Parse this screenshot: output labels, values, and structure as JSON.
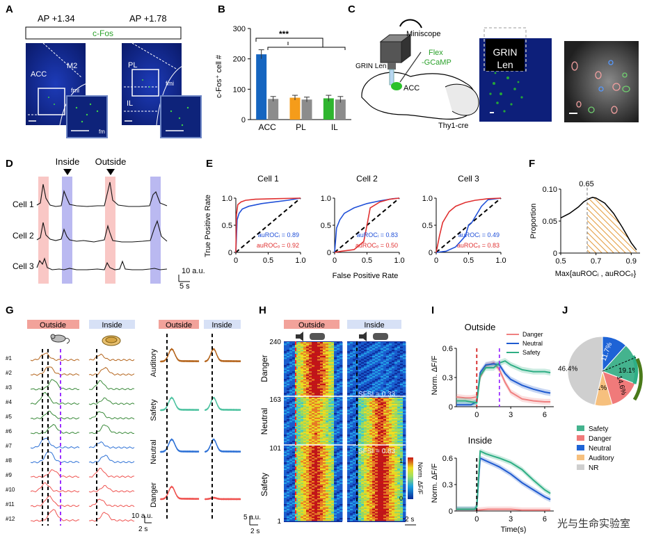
{
  "figure": {
    "panel_letters": [
      "A",
      "B",
      "C",
      "D",
      "E",
      "F",
      "G",
      "H",
      "I",
      "J"
    ],
    "watermark": "光与生命实验室"
  },
  "panelA": {
    "ap_labels": [
      "AP +1.34",
      "AP +1.78"
    ],
    "stain_label": "c-Fos",
    "region_labels": [
      "ACC",
      "M2",
      "fmi",
      "fm",
      "PL",
      "IL",
      "fmi"
    ]
  },
  "panelB": {
    "ylabel": "c-Fos⁺ cell #",
    "significance": "***",
    "chart_data": {
      "type": "bar",
      "categories": [
        "ACC",
        "PL",
        "IL"
      ],
      "ylim": [
        0,
        300
      ],
      "yticks": [
        0,
        100,
        200,
        300
      ],
      "series": [
        {
          "values": [
            215,
            72,
            70
          ],
          "errors": [
            15,
            8,
            10
          ],
          "colors": [
            "#1565c0",
            "#f59c1a",
            "#2fb52f"
          ]
        },
        {
          "values": [
            68,
            66,
            66
          ],
          "errors": [
            8,
            8,
            10
          ],
          "colors": [
            "#8c8c8c",
            "#8c8c8c",
            "#8c8c8c"
          ]
        }
      ]
    }
  },
  "panelC": {
    "labels": [
      "Miniscope",
      "GRIN Len",
      "Flex",
      "-GCaMP",
      "ACC",
      "Thy1-cre",
      "GRIN",
      "Len"
    ]
  },
  "panelD": {
    "markers": [
      "Inside",
      "Outside"
    ],
    "cells": [
      "Cell 1",
      "Cell 2",
      "Cell 3"
    ],
    "scale_y": "10 a.u.",
    "scale_x": "5 s"
  },
  "panelE": {
    "ylabel": "True Positive Rate",
    "xlabel": "False Positive Rate",
    "chart_data": [
      {
        "type": "line",
        "title": "Cell 1",
        "xlim": [
          0,
          1
        ],
        "ylim": [
          0,
          1
        ],
        "xticks": [
          "0",
          "0.5",
          "1.0"
        ],
        "yticks": [
          "0",
          "0.5",
          "1.0"
        ],
        "annotations": [
          "auROCᵢ = 0.89",
          "auROCₒ = 0.92"
        ],
        "series": [
          {
            "color": "#1f4fd8",
            "x": [
              0,
              0.02,
              0.05,
              0.1,
              0.2,
              0.4,
              0.6,
              0.8,
              1
            ],
            "y": [
              0,
              0.6,
              0.72,
              0.8,
              0.85,
              0.9,
              0.93,
              0.96,
              1
            ]
          },
          {
            "color": "#e03030",
            "x": [
              0,
              0.01,
              0.03,
              0.08,
              0.15,
              0.3,
              0.6,
              1
            ],
            "y": [
              0,
              0.7,
              0.88,
              0.93,
              0.96,
              0.98,
              0.99,
              1
            ]
          }
        ]
      },
      {
        "type": "line",
        "title": "Cell 2",
        "xlim": [
          0,
          1
        ],
        "ylim": [
          0,
          1
        ],
        "xticks": [
          "0",
          "0.5",
          "1.0"
        ],
        "yticks": [
          "0",
          "0.5",
          "1.0"
        ],
        "annotations": [
          "auROCᵢ = 0.83",
          "auROCₒ = 0.50"
        ],
        "series": [
          {
            "color": "#1f4fd8",
            "x": [
              0,
              0.03,
              0.08,
              0.15,
              0.3,
              0.5,
              0.7,
              0.9,
              1
            ],
            "y": [
              0,
              0.45,
              0.6,
              0.72,
              0.82,
              0.9,
              0.95,
              0.99,
              1
            ]
          },
          {
            "color": "#e03030",
            "x": [
              0,
              0.1,
              0.3,
              0.45,
              0.5,
              0.55,
              0.7,
              0.85,
              1
            ],
            "y": [
              0,
              0.02,
              0.05,
              0.2,
              0.5,
              0.82,
              0.93,
              0.98,
              1
            ]
          }
        ]
      },
      {
        "type": "line",
        "title": "Cell 3",
        "xlim": [
          0,
          1
        ],
        "ylim": [
          0,
          1
        ],
        "xticks": [
          "0",
          "0.5",
          "1.0"
        ],
        "yticks": [
          "0",
          "0.5",
          "1.0"
        ],
        "annotations": [
          "auROCᵢ = 0.49",
          "auROCₒ = 0.83"
        ],
        "series": [
          {
            "color": "#1f4fd8",
            "x": [
              0,
              0.15,
              0.3,
              0.45,
              0.5,
              0.55,
              0.7,
              0.8,
              1
            ],
            "y": [
              0,
              0.02,
              0.1,
              0.3,
              0.5,
              0.55,
              0.85,
              0.97,
              1
            ]
          },
          {
            "color": "#e03030",
            "x": [
              0,
              0.05,
              0.1,
              0.2,
              0.3,
              0.45,
              0.6,
              0.8,
              1
            ],
            "y": [
              0,
              0.3,
              0.55,
              0.75,
              0.85,
              0.92,
              0.96,
              0.99,
              1
            ]
          }
        ]
      }
    ]
  },
  "panelF": {
    "ylabel": "Proportion",
    "xlabel": "Max{auROCᵢ , auROCₒ}",
    "threshold_label": "0.65",
    "chart_data": {
      "type": "area",
      "xlim": [
        0.5,
        0.95
      ],
      "ylim": [
        0,
        0.1
      ],
      "xticks": [
        "0.5",
        "0.7",
        "0.9"
      ],
      "yticks": [
        "0",
        "0.05",
        "0.10"
      ],
      "threshold": 0.65,
      "x": [
        0.5,
        0.55,
        0.6,
        0.63,
        0.66,
        0.68,
        0.7,
        0.75,
        0.8,
        0.85,
        0.9,
        0.93
      ],
      "y": [
        0.055,
        0.062,
        0.072,
        0.08,
        0.085,
        0.087,
        0.086,
        0.078,
        0.062,
        0.04,
        0.016,
        0.005
      ]
    }
  },
  "panelG": {
    "headers": [
      "Outside",
      "Inside",
      "Outside",
      "Inside"
    ],
    "row_labels": [
      "#1",
      "#2",
      "#3",
      "#4",
      "#5",
      "#6",
      "#7",
      "#8",
      "#9",
      "#10",
      "#11",
      "#12"
    ],
    "group_labels": [
      "Auditory",
      "Safety",
      "Neutral",
      "Danger"
    ],
    "scale_left_y": "10 a.u.",
    "scale_left_x": "2 s",
    "scale_right_y": "5 a.u.",
    "scale_right_x": "2 s",
    "colors": {
      "auditory": "#b5651d",
      "safety": "#3a8a3a",
      "neutral": "#2f72d6",
      "danger": "#ef5350",
      "safety_avg": "#4fc3a1"
    }
  },
  "panelH": {
    "headers": [
      "Outside",
      "Inside"
    ],
    "groups": [
      "Danger",
      "Neutral",
      "Safety"
    ],
    "ytick_labels": [
      "240",
      "163",
      "101",
      "1"
    ],
    "sfsi_labels": [
      "SFSI = 0.33",
      "SFSI = 0.83"
    ],
    "colorbar_label": "Norm. ΔF/F",
    "colorbar_ticks": [
      "1",
      "0"
    ],
    "scale_x": "2 s"
  },
  "panelI": {
    "titles": [
      "Outside",
      "Inside"
    ],
    "ylabel": "Norm. ΔF/F",
    "xlabel": "Time(s)",
    "legend": [
      "Danger",
      "Neutral",
      "Safety"
    ],
    "chart_data": [
      {
        "type": "line",
        "title": "Outside",
        "xlim": [
          -1.8,
          6.8
        ],
        "ylim": [
          0,
          0.6
        ],
        "xticks": [
          "0",
          "3",
          "6"
        ],
        "yticks": [
          "0",
          "0.3",
          "0.6"
        ],
        "series": [
          {
            "name": "Danger",
            "color": "#f08080",
            "x": [
              -1.8,
              -1,
              -0.5,
              0,
              0.3,
              0.8,
              1.5,
              2,
              2.5,
              3,
              4,
              5,
              6,
              6.5
            ],
            "y": [
              0.1,
              0.09,
              0.09,
              0.1,
              0.3,
              0.42,
              0.45,
              0.38,
              0.25,
              0.15,
              0.08,
              0.06,
              0.05,
              0.05
            ]
          },
          {
            "name": "Neutral",
            "color": "#1f5ad0",
            "x": [
              -1.8,
              -1,
              -0.5,
              0,
              0.3,
              0.8,
              1.5,
              2,
              2.5,
              3,
              4,
              5,
              6,
              6.5
            ],
            "y": [
              0.02,
              0.02,
              0.02,
              0.05,
              0.35,
              0.43,
              0.44,
              0.43,
              0.34,
              0.28,
              0.22,
              0.18,
              0.15,
              0.14
            ]
          },
          {
            "name": "Safety",
            "color": "#2eae84",
            "x": [
              -1.8,
              -1,
              -0.5,
              0,
              0.3,
              0.8,
              1.5,
              2,
              2.5,
              3,
              4,
              5,
              6,
              6.5
            ],
            "y": [
              0.06,
              0.06,
              0.05,
              0.04,
              0.32,
              0.4,
              0.4,
              0.45,
              0.47,
              0.43,
              0.38,
              0.36,
              0.36,
              0.35
            ]
          }
        ]
      },
      {
        "type": "line",
        "title": "Inside",
        "xlim": [
          -1.8,
          6.8
        ],
        "ylim": [
          0,
          0.6
        ],
        "xticks": [
          "0",
          "3",
          "6"
        ],
        "yticks": [
          "0",
          "0.3",
          "0.6"
        ],
        "series": [
          {
            "name": "Danger",
            "color": "#f08080",
            "x": [
              -1.8,
              0,
              1,
              2,
              3,
              4,
              5,
              6,
              6.5
            ],
            "y": [
              0.01,
              0.01,
              0.02,
              0.02,
              0.02,
              0.01,
              0.01,
              0.01,
              0.01
            ]
          },
          {
            "name": "Neutral",
            "color": "#1f5ad0",
            "x": [
              -1.8,
              -0.2,
              0,
              0.3,
              0.8,
              1.5,
              2,
              3,
              4,
              5,
              6,
              6.5
            ],
            "y": [
              0.02,
              0.02,
              0.05,
              0.6,
              0.57,
              0.53,
              0.5,
              0.42,
              0.32,
              0.24,
              0.16,
              0.13
            ]
          },
          {
            "name": "Safety",
            "color": "#2eae84",
            "x": [
              -1.8,
              -0.2,
              0,
              0.3,
              0.8,
              1.5,
              2,
              3,
              4,
              5,
              6,
              6.5
            ],
            "y": [
              0.02,
              0.02,
              0.05,
              0.68,
              0.65,
              0.62,
              0.6,
              0.55,
              0.47,
              0.35,
              0.24,
              0.2
            ]
          }
        ]
      }
    ]
  },
  "panelJ": {
    "chart_data": {
      "type": "pie",
      "slices": [
        {
          "name": "Safety",
          "value": 19.1,
          "label": "19.1%",
          "color": "#44b38e"
        },
        {
          "name": "Danger",
          "value": 14.6,
          "label": "14.6%",
          "color": "#f07a7a"
        },
        {
          "name": "Auditory",
          "value": 8.1,
          "label": "8.1%",
          "color": "#f6c07e"
        },
        {
          "name": "NR",
          "value": 46.4,
          "label": "46.4%",
          "color": "#cfcfcf"
        },
        {
          "name": "Neutral",
          "value": 11.7,
          "label": "11.7%",
          "color": "#1e63d6"
        }
      ]
    },
    "legend": [
      "Safety",
      "Danger",
      "Neutral",
      "Auditory",
      "NR"
    ]
  }
}
